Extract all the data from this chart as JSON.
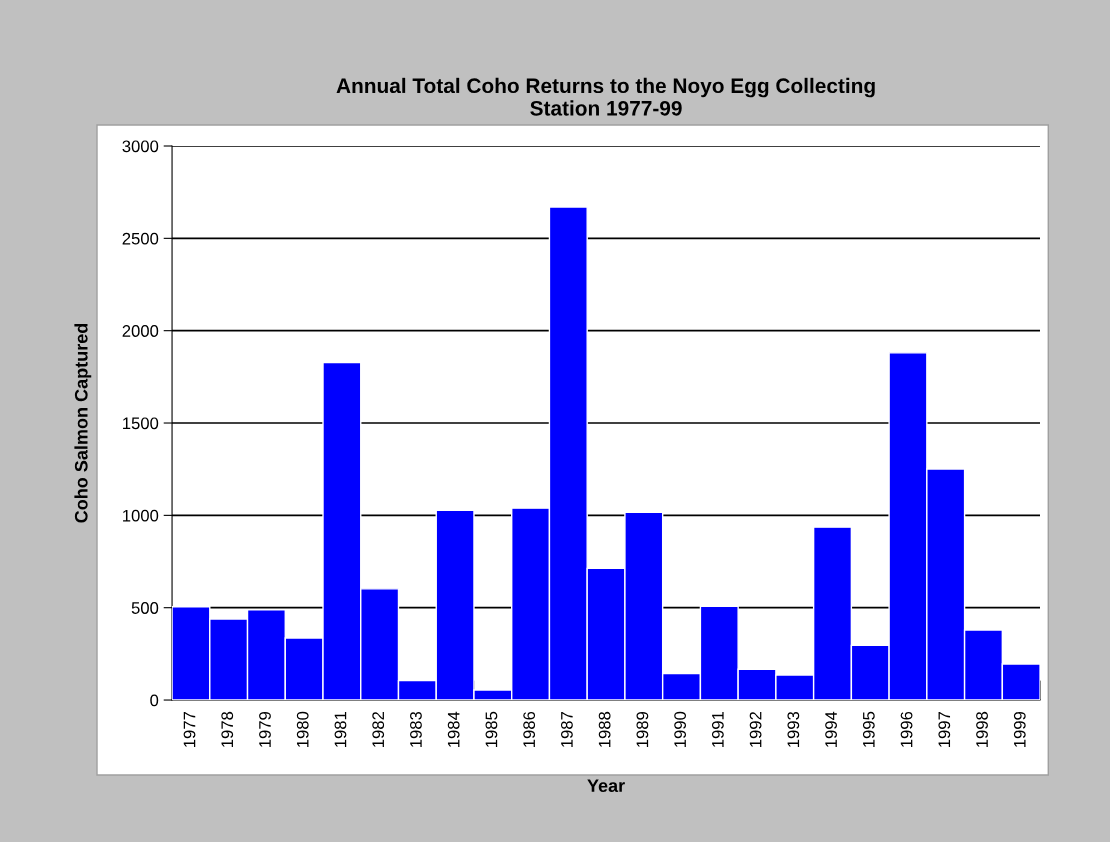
{
  "chart_data": {
    "type": "bar",
    "title": "Annual Total Coho Returns to the Noyo Egg Collecting\nStation 1977-99",
    "xlabel": "Year",
    "ylabel": "Coho Salmon Captured",
    "categories": [
      "1977",
      "1978",
      "1979",
      "1980",
      "1981",
      "1982",
      "1983",
      "1984",
      "1985",
      "1986",
      "1987",
      "1988",
      "1989",
      "1990",
      "1991",
      "1992",
      "1993",
      "1994",
      "1995",
      "1996",
      "1997",
      "1998",
      "1999"
    ],
    "values": [
      505,
      439,
      488,
      336,
      1827,
      602,
      105,
      1028,
      54,
      1039,
      2670,
      713,
      1017,
      143,
      507,
      167,
      135,
      936,
      296,
      1880,
      1251,
      379,
      195
    ],
    "color": "#0000ff",
    "ylim": [
      0,
      3000
    ],
    "yticks": [
      0,
      500,
      1000,
      1500,
      2000,
      2500,
      3000
    ],
    "grid": "y"
  }
}
